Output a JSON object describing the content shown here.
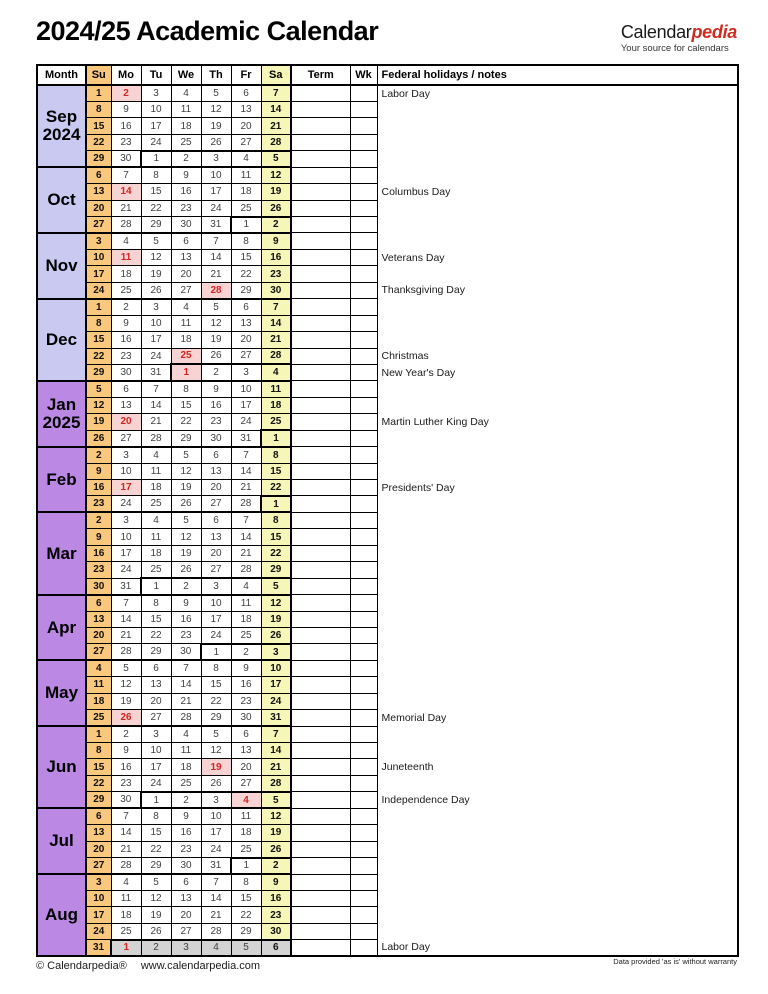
{
  "page": {
    "title": "2024/25 Academic Calendar"
  },
  "brand": {
    "name_black": "Calendar",
    "name_red": "pedia",
    "tagline": "Your source for calendars"
  },
  "table_header": {
    "month": "Month",
    "days": [
      "Su",
      "Mo",
      "Tu",
      "We",
      "Th",
      "Fr",
      "Sa"
    ],
    "term": "Term",
    "wk": "Wk",
    "notes": "Federal holidays / notes"
  },
  "colors": {
    "fall_month_bg": "#c9c9f2",
    "spring_month_bg": "#bb88e4",
    "sunday_bg": "#f9c87d",
    "saturday_bg": "#f6f6b9",
    "holiday_bg": "#f8d3d3",
    "holiday_text": "#d62420",
    "next_year_bg": "#d3d3d3",
    "brand_red": "#d22b20"
  },
  "months": [
    {
      "name": "Sep",
      "year": "2024",
      "color": "#c9c9f2",
      "weeks": [
        {
          "days": [
            1,
            2,
            3,
            4,
            5,
            6,
            7
          ],
          "hol": [
            1
          ],
          "note": "Labor Day"
        },
        {
          "days": [
            8,
            9,
            10,
            11,
            12,
            13,
            14
          ]
        },
        {
          "days": [
            15,
            16,
            17,
            18,
            19,
            20,
            21
          ]
        },
        {
          "days": [
            22,
            23,
            24,
            25,
            26,
            27,
            28
          ]
        },
        {
          "days": [
            29,
            30,
            1,
            2,
            3,
            4,
            5
          ],
          "out_from": 2
        }
      ]
    },
    {
      "name": "Oct",
      "color": "#c9c9f2",
      "weeks": [
        {
          "days": [
            6,
            7,
            8,
            9,
            10,
            11,
            12
          ]
        },
        {
          "days": [
            13,
            14,
            15,
            16,
            17,
            18,
            19
          ],
          "hol": [
            1
          ],
          "note": "Columbus Day"
        },
        {
          "days": [
            20,
            21,
            22,
            23,
            24,
            25,
            26
          ]
        },
        {
          "days": [
            27,
            28,
            29,
            30,
            31,
            1,
            2
          ],
          "out_from": 5
        }
      ]
    },
    {
      "name": "Nov",
      "color": "#c9c9f2",
      "weeks": [
        {
          "days": [
            3,
            4,
            5,
            6,
            7,
            8,
            9
          ]
        },
        {
          "days": [
            10,
            11,
            12,
            13,
            14,
            15,
            16
          ],
          "hol": [
            1
          ],
          "note": "Veterans Day"
        },
        {
          "days": [
            17,
            18,
            19,
            20,
            21,
            22,
            23
          ]
        },
        {
          "days": [
            24,
            25,
            26,
            27,
            28,
            29,
            30
          ],
          "hol": [
            4
          ],
          "note": "Thanksgiving Day"
        }
      ]
    },
    {
      "name": "Dec",
      "color": "#c9c9f2",
      "weeks": [
        {
          "days": [
            1,
            2,
            3,
            4,
            5,
            6,
            7
          ]
        },
        {
          "days": [
            8,
            9,
            10,
            11,
            12,
            13,
            14
          ]
        },
        {
          "days": [
            15,
            16,
            17,
            18,
            19,
            20,
            21
          ]
        },
        {
          "days": [
            22,
            23,
            24,
            25,
            26,
            27,
            28
          ],
          "hol": [
            3
          ],
          "note": "Christmas"
        },
        {
          "days": [
            29,
            30,
            31,
            1,
            2,
            3,
            4
          ],
          "out_from": 3,
          "hol": [
            3
          ],
          "note": "New Year's Day"
        }
      ]
    },
    {
      "name": "Jan",
      "year": "2025",
      "color": "#bb88e4",
      "weeks": [
        {
          "days": [
            5,
            6,
            7,
            8,
            9,
            10,
            11
          ]
        },
        {
          "days": [
            12,
            13,
            14,
            15,
            16,
            17,
            18
          ]
        },
        {
          "days": [
            19,
            20,
            21,
            22,
            23,
            24,
            25
          ],
          "hol": [
            1
          ],
          "note": "Martin Luther King Day"
        },
        {
          "days": [
            26,
            27,
            28,
            29,
            30,
            31,
            1
          ],
          "out_from": 6
        }
      ]
    },
    {
      "name": "Feb",
      "color": "#bb88e4",
      "weeks": [
        {
          "days": [
            2,
            3,
            4,
            5,
            6,
            7,
            8
          ]
        },
        {
          "days": [
            9,
            10,
            11,
            12,
            13,
            14,
            15
          ]
        },
        {
          "days": [
            16,
            17,
            18,
            19,
            20,
            21,
            22
          ],
          "hol": [
            1
          ],
          "note": "Presidents' Day"
        },
        {
          "days": [
            23,
            24,
            25,
            26,
            27,
            28,
            1
          ],
          "out_from": 6
        }
      ]
    },
    {
      "name": "Mar",
      "color": "#bb88e4",
      "weeks": [
        {
          "days": [
            2,
            3,
            4,
            5,
            6,
            7,
            8
          ]
        },
        {
          "days": [
            9,
            10,
            11,
            12,
            13,
            14,
            15
          ]
        },
        {
          "days": [
            16,
            17,
            18,
            19,
            20,
            21,
            22
          ]
        },
        {
          "days": [
            23,
            24,
            25,
            26,
            27,
            28,
            29
          ]
        },
        {
          "days": [
            30,
            31,
            1,
            2,
            3,
            4,
            5
          ],
          "out_from": 2
        }
      ]
    },
    {
      "name": "Apr",
      "color": "#bb88e4",
      "weeks": [
        {
          "days": [
            6,
            7,
            8,
            9,
            10,
            11,
            12
          ]
        },
        {
          "days": [
            13,
            14,
            15,
            16,
            17,
            18,
            19
          ]
        },
        {
          "days": [
            20,
            21,
            22,
            23,
            24,
            25,
            26
          ]
        },
        {
          "days": [
            27,
            28,
            29,
            30,
            1,
            2,
            3
          ],
          "out_from": 4
        }
      ]
    },
    {
      "name": "May",
      "color": "#bb88e4",
      "weeks": [
        {
          "days": [
            4,
            5,
            6,
            7,
            8,
            9,
            10
          ]
        },
        {
          "days": [
            11,
            12,
            13,
            14,
            15,
            16,
            17
          ]
        },
        {
          "days": [
            18,
            19,
            20,
            21,
            22,
            23,
            24
          ]
        },
        {
          "days": [
            25,
            26,
            27,
            28,
            29,
            30,
            31
          ],
          "hol": [
            1
          ],
          "note": "Memorial Day"
        }
      ]
    },
    {
      "name": "Jun",
      "color": "#bb88e4",
      "weeks": [
        {
          "days": [
            1,
            2,
            3,
            4,
            5,
            6,
            7
          ]
        },
        {
          "days": [
            8,
            9,
            10,
            11,
            12,
            13,
            14
          ]
        },
        {
          "days": [
            15,
            16,
            17,
            18,
            19,
            20,
            21
          ],
          "hol": [
            4
          ],
          "note": "Juneteenth"
        },
        {
          "days": [
            22,
            23,
            24,
            25,
            26,
            27,
            28
          ]
        },
        {
          "days": [
            29,
            30,
            1,
            2,
            3,
            4,
            5
          ],
          "out_from": 2,
          "hol": [
            5
          ],
          "note": "Independence Day"
        }
      ]
    },
    {
      "name": "Jul",
      "color": "#bb88e4",
      "weeks": [
        {
          "days": [
            6,
            7,
            8,
            9,
            10,
            11,
            12
          ]
        },
        {
          "days": [
            13,
            14,
            15,
            16,
            17,
            18,
            19
          ]
        },
        {
          "days": [
            20,
            21,
            22,
            23,
            24,
            25,
            26
          ]
        },
        {
          "days": [
            27,
            28,
            29,
            30,
            31,
            1,
            2
          ],
          "out_from": 5
        }
      ]
    },
    {
      "name": "Aug",
      "color": "#bb88e4",
      "weeks": [
        {
          "days": [
            3,
            4,
            5,
            6,
            7,
            8,
            9
          ]
        },
        {
          "days": [
            10,
            11,
            12,
            13,
            14,
            15,
            16
          ]
        },
        {
          "days": [
            17,
            18,
            19,
            20,
            21,
            22,
            23
          ]
        },
        {
          "days": [
            24,
            25,
            26,
            27,
            28,
            29,
            30
          ]
        },
        {
          "days": [
            31,
            1,
            2,
            3,
            4,
            5,
            6
          ],
          "out_from": 1,
          "gray": true,
          "hol": [
            1
          ],
          "note": "Labor Day"
        }
      ]
    }
  ],
  "footer": {
    "copyright": "© Calendarpedia®",
    "website": "www.calendarpedia.com",
    "disclaimer": "Data provided 'as is' without warranty"
  }
}
